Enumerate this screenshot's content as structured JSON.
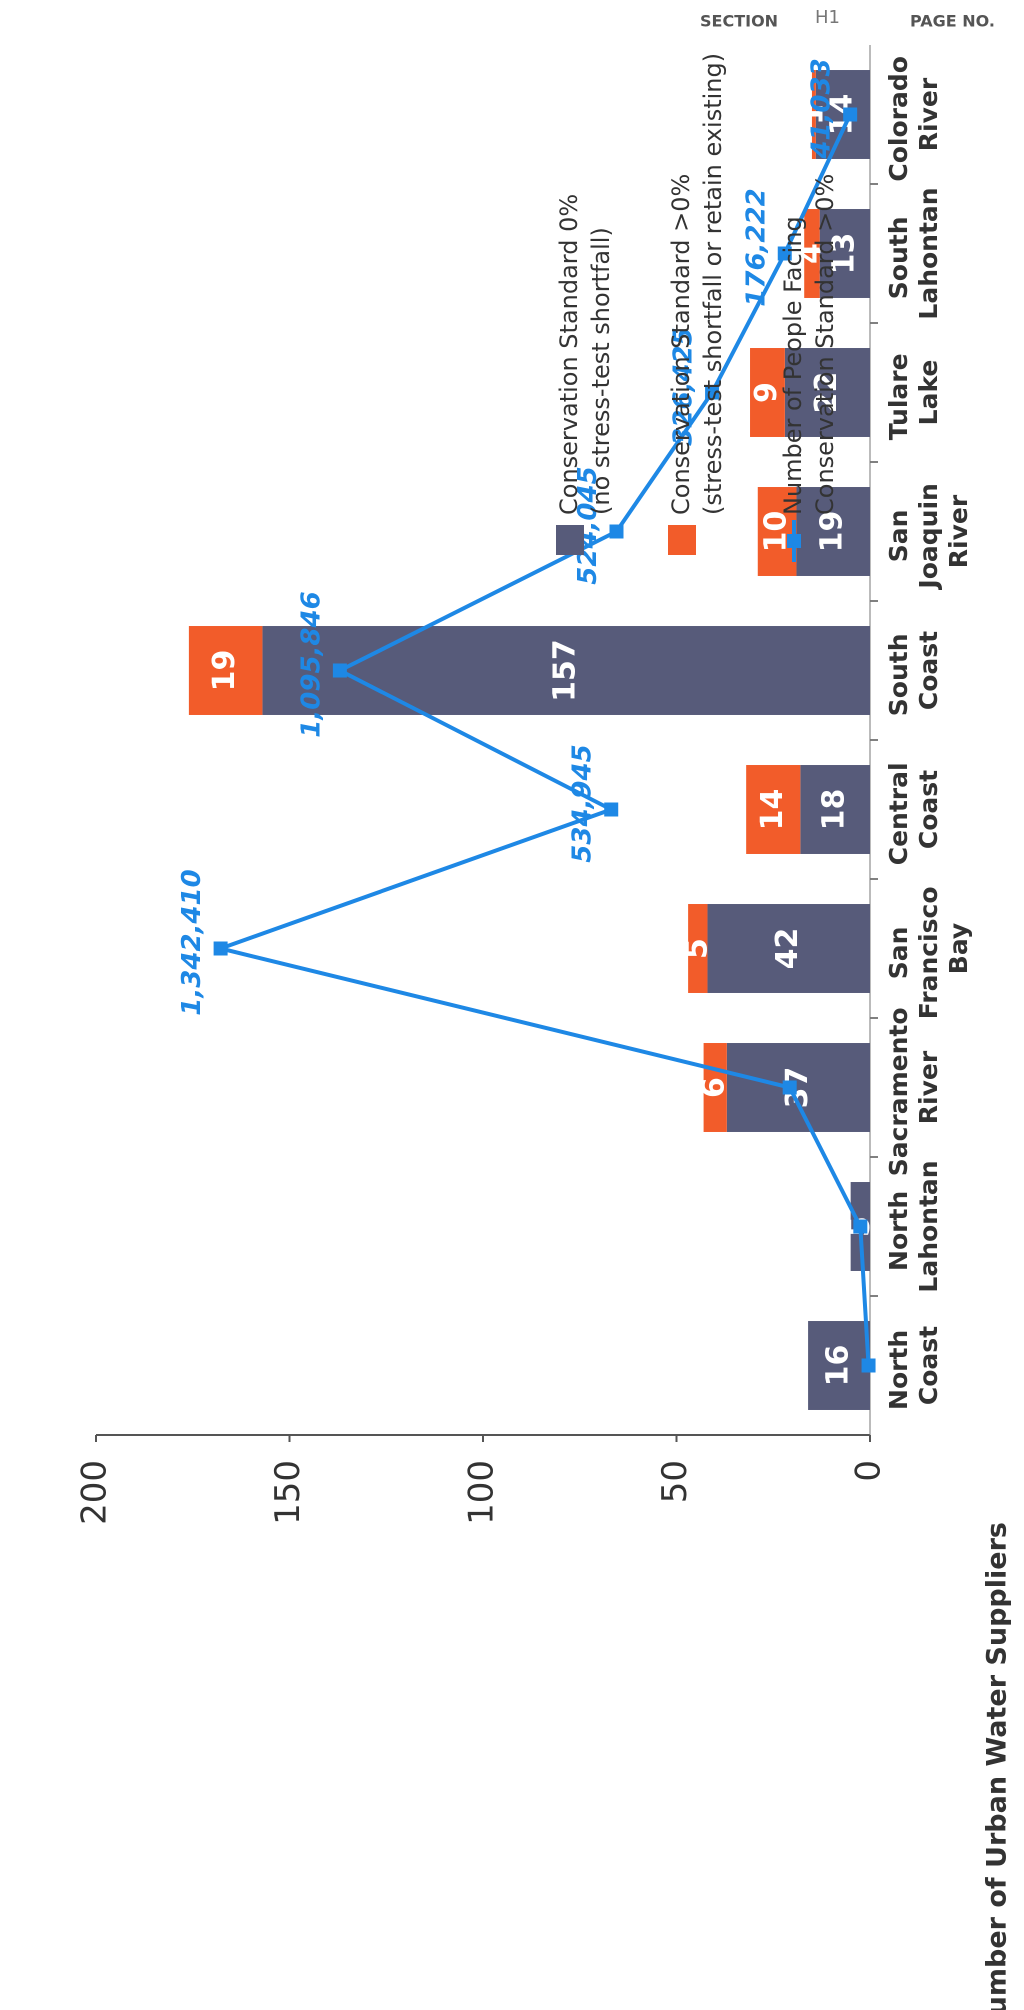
{
  "header": {
    "section_label": "SECTION",
    "section": "H1",
    "page_label": "PAGE NO."
  },
  "chart_data": {
    "type": "bar-line",
    "y_label": "Number of Urban Water Suppliers",
    "categories": [
      "North Coast",
      "North Lahontan",
      "Sacramento River",
      "San Francisco Bay",
      "Central Coast",
      "South Coast",
      "San Joaquin River",
      "Tulare Lake",
      "South Lahontan",
      "Colorado River"
    ],
    "ylim": [
      0,
      200
    ],
    "yticks": [
      0,
      50,
      100,
      150,
      200
    ],
    "y2lim": [
      0,
      1600000
    ],
    "series": [
      {
        "name": "Conservation Standard 0% (no stress-test shortfall)",
        "color": "#575b7a",
        "values": [
          16,
          5,
          37,
          42,
          18,
          157,
          19,
          22,
          13,
          14
        ]
      },
      {
        "name": "Conservation Standard >0% (stress-test shortfall or retain existing)",
        "color": "#f25c2a",
        "values": [
          null,
          null,
          6,
          5,
          14,
          19,
          10,
          9,
          4,
          1
        ]
      },
      {
        "name": "Number of People Facing Conservation Standard >0%",
        "color": "#1e88e5",
        "axis": "y2",
        "values": [
          3000,
          20000,
          166000,
          1342410,
          534945,
          1095846,
          524045,
          326425,
          176222,
          41033
        ],
        "value_labels": [
          null,
          null,
          null,
          "1,342,410",
          "534,945",
          "1,095,846",
          "524,045",
          "326,425",
          "176,222",
          "41,033"
        ]
      }
    ]
  }
}
